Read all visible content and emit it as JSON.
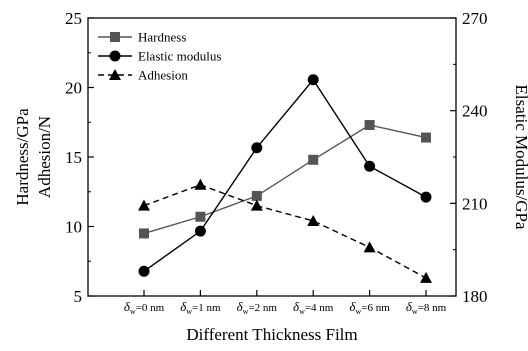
{
  "chart_data": {
    "type": "line",
    "categories": [
      "δw=0 nm",
      "δw=1 nm",
      "δw=2 nm",
      "δw=4 nm",
      "δw=6 nm",
      "δw=8 nm"
    ],
    "category_labels": [
      {
        "symbol": "δ",
        "sub": "w",
        "text": "=0 nm"
      },
      {
        "symbol": "δ",
        "sub": "w",
        "text": "=1 nm"
      },
      {
        "symbol": "δ",
        "sub": "w",
        "text": "=2 nm"
      },
      {
        "symbol": "δ",
        "sub": "w",
        "text": "=4 nm"
      },
      {
        "symbol": "δ",
        "sub": "w",
        "text": "=6 nm"
      },
      {
        "symbol": "δ",
        "sub": "w",
        "text": "=8 nm"
      }
    ],
    "xlabel": "Different Thickness Film",
    "ylabel_left_1": "Hardness/GPa",
    "ylabel_left_2": "Adhesion/N",
    "ylabel_right": "Elsatic Modulus/GPa",
    "y_left": {
      "min": 5,
      "max": 25,
      "ticks": [
        5,
        10,
        15,
        20,
        25
      ]
    },
    "y_right": {
      "min": 180,
      "max": 270,
      "ticks": [
        180,
        210,
        240,
        270
      ]
    },
    "legend_position": "top-left",
    "grid": false,
    "series": [
      {
        "name": "Hardness",
        "axis": "left",
        "marker": "square",
        "line": "solid",
        "color": "#555555",
        "values": [
          9.5,
          10.7,
          12.2,
          14.8,
          17.3,
          16.4
        ]
      },
      {
        "name": "Elastic modulus",
        "axis": "right",
        "marker": "circle",
        "line": "solid",
        "color": "#000000",
        "values": [
          188,
          201,
          228,
          250,
          222,
          212
        ]
      },
      {
        "name": "Adhesion",
        "axis": "left",
        "marker": "triangle",
        "line": "dashed",
        "color": "#000000",
        "values": [
          11.5,
          13.0,
          11.5,
          10.4,
          8.5,
          6.3
        ]
      }
    ]
  }
}
